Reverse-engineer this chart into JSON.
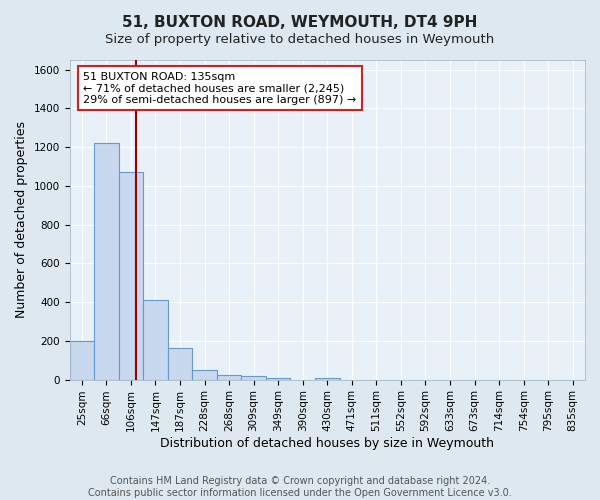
{
  "title": "51, BUXTON ROAD, WEYMOUTH, DT4 9PH",
  "subtitle": "Size of property relative to detached houses in Weymouth",
  "xlabel": "Distribution of detached houses by size in Weymouth",
  "ylabel": "Number of detached properties",
  "footer_line1": "Contains HM Land Registry data © Crown copyright and database right 2024.",
  "footer_line2": "Contains public sector information licensed under the Open Government Licence v3.0.",
  "categories": [
    "25sqm",
    "66sqm",
    "106sqm",
    "147sqm",
    "187sqm",
    "228sqm",
    "268sqm",
    "309sqm",
    "349sqm",
    "390sqm",
    "430sqm",
    "471sqm",
    "511sqm",
    "552sqm",
    "592sqm",
    "633sqm",
    "673sqm",
    "714sqm",
    "754sqm",
    "795sqm",
    "835sqm"
  ],
  "values": [
    200,
    1220,
    1070,
    410,
    165,
    52,
    25,
    18,
    10,
    0,
    10,
    0,
    0,
    0,
    0,
    0,
    0,
    0,
    0,
    0,
    0
  ],
  "bar_color": "#c8d8ee",
  "bar_edge_color": "#6699cc",
  "bar_edge_width": 0.8,
  "property_line_color": "#990000",
  "annotation_line1": "51 BUXTON ROAD: 135sqm",
  "annotation_line2": "← 71% of detached houses are smaller (2,245)",
  "annotation_line3": "29% of semi-detached houses are larger (897) →",
  "annotation_box_color": "white",
  "annotation_box_edge_color": "#cc2222",
  "ylim": [
    0,
    1650
  ],
  "yticks": [
    0,
    200,
    400,
    600,
    800,
    1000,
    1200,
    1400,
    1600
  ],
  "background_color": "#dde8f0",
  "plot_background_color": "#e8f0f8",
  "grid_color": "white",
  "title_fontsize": 11,
  "subtitle_fontsize": 9.5,
  "axis_label_fontsize": 9,
  "tick_fontsize": 7.5,
  "annotation_fontsize": 8,
  "footer_fontsize": 7
}
